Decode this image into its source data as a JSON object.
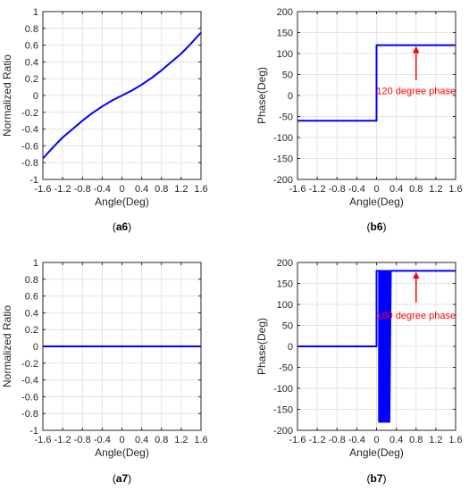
{
  "colors": {
    "series": "#0000ff",
    "annotation": "#ff0000",
    "grid": "#e3e3e3",
    "axis": "#262626"
  },
  "chart_data": [
    {
      "type": "line",
      "caption": "(a6)",
      "xlabel": "Angle(Deg)",
      "ylabel": "Normalized Ratio",
      "xlim": [
        -1.6,
        1.6
      ],
      "ylim": [
        -1,
        1
      ],
      "xticks": [
        -1.6,
        -1.2,
        -0.8,
        -0.4,
        0,
        0.4,
        0.8,
        1.2,
        1.6
      ],
      "xtick_labels": [
        "-1.6",
        "-1.2",
        "-0.8",
        "-0.4",
        "0",
        "0.4",
        "0.8",
        "1.2",
        "1.6"
      ],
      "yticks": [
        -1,
        -0.8,
        -0.6,
        -0.4,
        -0.2,
        0,
        0.2,
        0.4,
        0.6,
        0.8,
        1
      ],
      "ytick_labels": [
        "-1",
        "-0.8",
        "-0.6",
        "-0.4",
        "-0.2",
        "0",
        "0.2",
        "0.4",
        "0.6",
        "0.8",
        "1"
      ],
      "grid": true,
      "series": [
        {
          "x": [
            -1.6,
            -1.4,
            -1.2,
            -1.0,
            -0.8,
            -0.6,
            -0.4,
            -0.2,
            0,
            0.2,
            0.4,
            0.6,
            0.8,
            1.0,
            1.2,
            1.4,
            1.6
          ],
          "y": [
            -0.75,
            -0.62,
            -0.5,
            -0.4,
            -0.3,
            -0.21,
            -0.13,
            -0.06,
            0.0,
            0.06,
            0.13,
            0.21,
            0.3,
            0.4,
            0.5,
            0.62,
            0.75
          ]
        }
      ],
      "annotations": []
    },
    {
      "type": "line",
      "caption": "(b6)",
      "xlabel": "Angle(Deg)",
      "ylabel": "Phase(Deg)",
      "xlim": [
        -1.6,
        1.6
      ],
      "ylim": [
        -200,
        200
      ],
      "xticks": [
        -1.6,
        -1.2,
        -0.8,
        -0.4,
        0,
        0.4,
        0.8,
        1.2,
        1.6
      ],
      "xtick_labels": [
        "-1.6",
        "-1.2",
        "-0.8",
        "-0.4",
        "0",
        "0.4",
        "0.8",
        "1.2",
        "1.6"
      ],
      "yticks": [
        -200,
        -150,
        -100,
        -50,
        0,
        50,
        100,
        150,
        200
      ],
      "ytick_labels": [
        "-200",
        "-150",
        "-100",
        "-50",
        "0",
        "50",
        "100",
        "150",
        "200"
      ],
      "grid": true,
      "series": [
        {
          "x": [
            -1.6,
            0,
            0,
            1.6
          ],
          "y": [
            -60,
            -60,
            120,
            120
          ]
        }
      ],
      "annotations": [
        {
          "text": "120 degree phase",
          "arrow_x": 0.8,
          "arrow_y_tip": 120,
          "arrow_y_tail": 37,
          "text_x": 0.8,
          "text_y": 12
        }
      ]
    },
    {
      "type": "line",
      "caption": "(a7)",
      "xlabel": "Angle(Deg)",
      "ylabel": "Normalized Ratio",
      "xlim": [
        -1.6,
        1.6
      ],
      "ylim": [
        -1,
        1
      ],
      "xticks": [
        -1.6,
        -1.2,
        -0.8,
        -0.4,
        0,
        0.4,
        0.8,
        1.2,
        1.6
      ],
      "xtick_labels": [
        "-1.6",
        "-1.2",
        "-0.8",
        "-0.4",
        "0",
        "0.4",
        "0.8",
        "1.2",
        "1.6"
      ],
      "yticks": [
        -1,
        -0.8,
        -0.6,
        -0.4,
        -0.2,
        0,
        0.2,
        0.4,
        0.6,
        0.8,
        1
      ],
      "ytick_labels": [
        "-1",
        "-0.8",
        "-0.6",
        "-0.4",
        "-0.2",
        "0",
        "0.2",
        "0.4",
        "0.6",
        "0.8",
        "1"
      ],
      "grid": true,
      "series": [
        {
          "x": [
            -1.6,
            1.6
          ],
          "y": [
            0,
            0
          ]
        }
      ],
      "annotations": []
    },
    {
      "type": "line",
      "caption": "(b7)",
      "xlabel": "Angle(Deg)",
      "ylabel": "Phase(Deg)",
      "xlim": [
        -1.6,
        1.6
      ],
      "ylim": [
        -200,
        200
      ],
      "xticks": [
        -1.6,
        -1.2,
        -0.8,
        -0.4,
        0,
        0.4,
        0.8,
        1.2,
        1.6
      ],
      "xtick_labels": [
        "-1.6",
        "-1.2",
        "-0.8",
        "-0.4",
        "0",
        "0.4",
        "0.8",
        "1.2",
        "1.6"
      ],
      "yticks": [
        -200,
        -150,
        -100,
        -50,
        0,
        50,
        100,
        150,
        200
      ],
      "ytick_labels": [
        "-200",
        "-150",
        "-100",
        "-50",
        "0",
        "50",
        "100",
        "150",
        "200"
      ],
      "grid": true,
      "series": [
        {
          "x": [
            -1.6,
            0.0,
            0.0,
            0.05,
            0.05,
            0.08,
            0.08,
            0.11,
            0.11,
            0.14,
            0.14,
            0.17,
            0.17,
            0.2,
            0.2,
            0.23,
            0.23,
            0.26,
            0.26,
            0.29,
            0.29,
            1.6
          ],
          "y": [
            0,
            0,
            180,
            180,
            -180,
            180,
            -180,
            180,
            -180,
            180,
            -180,
            180,
            -180,
            180,
            -180,
            180,
            -180,
            180,
            -180,
            180,
            180,
            180
          ]
        }
      ],
      "annotations": [
        {
          "text": "180 degree phase",
          "arrow_x": 0.8,
          "arrow_y_tip": 180,
          "arrow_y_tail": 105,
          "text_x": 0.8,
          "text_y": 75
        }
      ]
    }
  ]
}
